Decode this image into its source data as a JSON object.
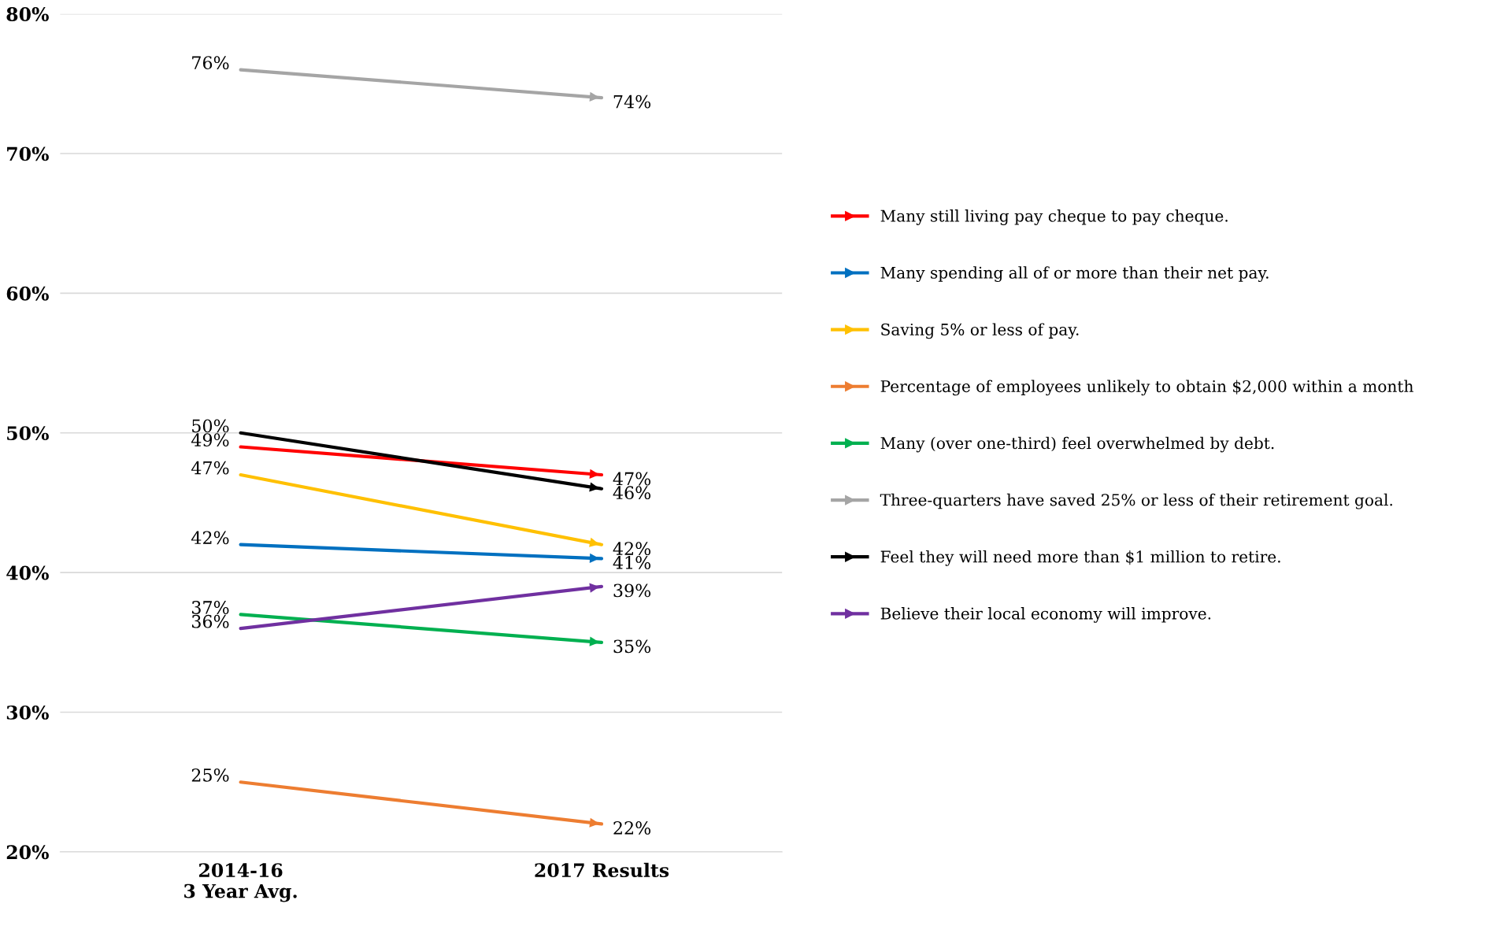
{
  "chart_data": {
    "type": "line",
    "categories": [
      "2014-16\n3 Year Avg.",
      "2017 Results"
    ],
    "series": [
      {
        "name": "Many still living pay cheque to pay cheque.",
        "color": "#ff0000",
        "values": [
          49,
          47
        ],
        "value_labels": [
          "49%",
          "47%"
        ]
      },
      {
        "name": "Many spending all of or more than their net pay.",
        "color": "#0070c0",
        "values": [
          42,
          41
        ],
        "value_labels": [
          "42%",
          "41%"
        ]
      },
      {
        "name": "Saving 5% or less of pay.",
        "color": "#ffc000",
        "values": [
          47,
          42
        ],
        "value_labels": [
          "47%",
          "42%"
        ]
      },
      {
        "name": "Percentage of employees unlikely to obtain $2,000 within a month",
        "color": "#ed7d31",
        "values": [
          25,
          22
        ],
        "value_labels": [
          "25%",
          "22%"
        ]
      },
      {
        "name": "Many (over one-third) feel overwhelmed by debt.",
        "color": "#00b050",
        "values": [
          37,
          35
        ],
        "value_labels": [
          "37%",
          "35%"
        ]
      },
      {
        "name": "Three-quarters have saved 25% or less of their retirement goal.",
        "color": "#a5a5a5",
        "values": [
          76,
          74
        ],
        "value_labels": [
          "76%",
          "74%"
        ]
      },
      {
        "name": "Feel they will need more than $1 million to retire.",
        "color": "#000000",
        "values": [
          50,
          46
        ],
        "value_labels": [
          "50%",
          "46%"
        ]
      },
      {
        "name": "Believe their local economy will improve.",
        "color": "#7030a0",
        "values": [
          36,
          39
        ],
        "value_labels": [
          "36%",
          "39%"
        ]
      }
    ],
    "ylim": [
      20,
      80
    ],
    "yticks": [
      {
        "value": 20,
        "label": "20%"
      },
      {
        "value": 30,
        "label": "30%"
      },
      {
        "value": 40,
        "label": "40%"
      },
      {
        "value": 50,
        "label": "50%"
      },
      {
        "value": 60,
        "label": "60%"
      },
      {
        "value": 70,
        "label": "70%"
      },
      {
        "value": 80,
        "label": "80%"
      }
    ],
    "grid": "y",
    "legend": "right",
    "line_style": "solid"
  }
}
